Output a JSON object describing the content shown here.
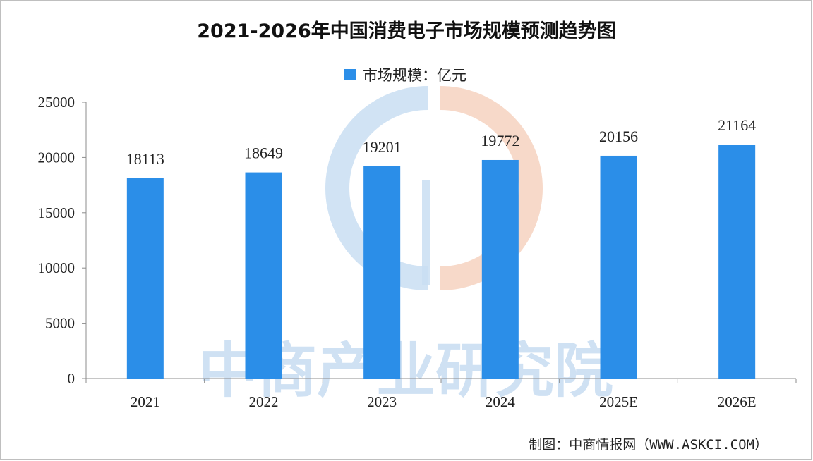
{
  "title": "2021-2026年中国消费电子市场规模预测趋势图",
  "legend": {
    "label": "市场规模：亿元",
    "color": "#2b8ee8"
  },
  "source": "制图：中商情报网（WWW.ASKCI.COM）",
  "watermark": "中商产业研究院",
  "chart_data": {
    "type": "bar",
    "title": "2021-2026年中国消费电子市场规模预测趋势图",
    "categories": [
      "2021",
      "2022",
      "2023",
      "2024",
      "2025E",
      "2026E"
    ],
    "series": [
      {
        "name": "市场规模：亿元",
        "values": [
          18113,
          18649,
          19201,
          19772,
          20156,
          21164
        ],
        "color": "#2b8ee8"
      }
    ],
    "ylim": [
      0,
      25000
    ],
    "yticks": [
      0,
      5000,
      10000,
      15000,
      20000,
      25000
    ],
    "data_labels": [
      "18113",
      "18649",
      "19201",
      "19772",
      "20156",
      "21164"
    ],
    "grid": false,
    "legend_position": "top-center"
  }
}
